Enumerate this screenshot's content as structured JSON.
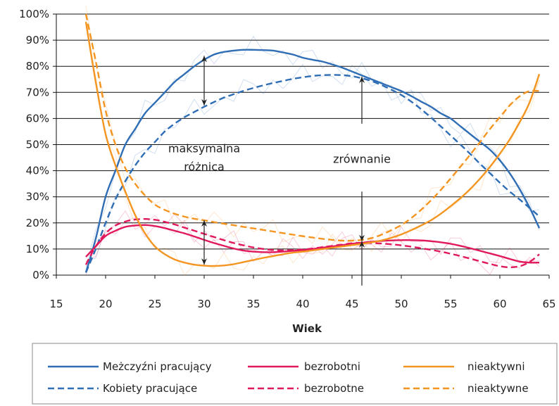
{
  "chart_data": {
    "type": "line",
    "xlabel": "Wiek",
    "ylabel": "",
    "xlim": [
      15,
      65
    ],
    "ylim": [
      0,
      100
    ],
    "x_ticks": [
      15,
      20,
      25,
      30,
      35,
      40,
      45,
      50,
      55,
      60,
      65
    ],
    "y_ticks": [
      0,
      10,
      20,
      30,
      40,
      50,
      60,
      70,
      80,
      90,
      100
    ],
    "x_tick_labels": [
      "15",
      "20",
      "25",
      "30",
      "35",
      "40",
      "45",
      "50",
      "55",
      "60",
      "65"
    ],
    "y_tick_labels": [
      "0%",
      "10%",
      "20%",
      "30%",
      "40%",
      "50%",
      "60%",
      "70%",
      "80%",
      "90%",
      "100%"
    ],
    "grid": "horizontal",
    "legend_placement": "bottom",
    "annotations": [
      {
        "text": "maksymalna",
        "x": 30,
        "y": 47
      },
      {
        "text": "różnica",
        "x": 30,
        "y": 40
      },
      {
        "text": "zrównanie",
        "x": 46,
        "y": 43
      }
    ],
    "arrows": [
      {
        "x": 30,
        "y_from": 65,
        "y_to": 84
      },
      {
        "x": 30,
        "y_from": 4,
        "y_to": 21
      },
      {
        "x": 46,
        "y_from": 58,
        "y_to": 76,
        "pointing": "down-to"
      },
      {
        "x": 46,
        "y_from": 32,
        "y_to": 13,
        "pointing": "down-to"
      },
      {
        "x": 46,
        "y_from": -4,
        "y_to": 13,
        "pointing": "up-to"
      }
    ],
    "series": [
      {
        "name": "Meżczyźni pracujący",
        "color": "#2f6db5",
        "dash": "solid",
        "x": [
          18,
          19,
          20,
          21,
          22,
          23,
          24,
          25,
          26,
          27,
          28,
          29,
          30,
          31,
          32,
          33,
          34,
          35,
          36,
          37,
          38,
          39,
          40,
          41,
          42,
          43,
          44,
          45,
          46,
          47,
          48,
          49,
          50,
          51,
          52,
          53,
          54,
          55,
          56,
          57,
          58,
          59,
          60,
          61,
          62,
          63,
          64
        ],
        "y": [
          1,
          14,
          30,
          40,
          50,
          56,
          62,
          66,
          70,
          74,
          77,
          80,
          82.5,
          84.5,
          85.5,
          86,
          86.3,
          86.3,
          86.2,
          86,
          85.3,
          84.5,
          83.3,
          82.5,
          81.8,
          80.7,
          79.5,
          78,
          76.5,
          75,
          73.5,
          72,
          70.5,
          68.6,
          66.5,
          64.5,
          62,
          60,
          57,
          54,
          51,
          48,
          44,
          39,
          33,
          26,
          18
        ]
      },
      {
        "name": "Kobiety pracujące",
        "color": "#2f6db5",
        "dash": "dashed",
        "x": [
          18,
          19,
          20,
          21,
          22,
          23,
          24,
          25,
          26,
          27,
          28,
          29,
          30,
          31,
          32,
          33,
          34,
          35,
          36,
          37,
          38,
          39,
          40,
          41,
          42,
          43,
          44,
          45,
          46,
          47,
          48,
          49,
          50,
          51,
          52,
          53,
          54,
          55,
          56,
          57,
          58,
          59,
          60,
          61,
          62,
          63,
          64
        ],
        "y": [
          1,
          10,
          20,
          29,
          36,
          42,
          47,
          51,
          55,
          58,
          60.5,
          62.5,
          64.5,
          66.3,
          68,
          69.3,
          70.6,
          71.7,
          72.7,
          73.6,
          74.4,
          75.2,
          75.8,
          76.3,
          76.6,
          76.7,
          76.6,
          76.2,
          75.4,
          74.3,
          72.8,
          71,
          69,
          66.5,
          63.6,
          60.4,
          57,
          53.5,
          50,
          46.4,
          42.6,
          39,
          35.4,
          32,
          29,
          25.8,
          22.5
        ]
      },
      {
        "name": "bezrobotni",
        "color": "#e0195c",
        "dash": "solid",
        "x": [
          18,
          19,
          20,
          21,
          22,
          23,
          24,
          25,
          26,
          27,
          28,
          29,
          30,
          31,
          32,
          33,
          34,
          35,
          36,
          37,
          38,
          39,
          40,
          41,
          42,
          43,
          44,
          45,
          46,
          47,
          48,
          49,
          50,
          51,
          52,
          53,
          54,
          55,
          56,
          57,
          58,
          59,
          60,
          61,
          62,
          63,
          64
        ],
        "y": [
          7,
          11,
          15,
          17,
          18.5,
          19,
          19.2,
          18.8,
          18,
          17,
          16,
          14.8,
          13.5,
          12.3,
          11.2,
          10.2,
          9.4,
          9,
          8.8,
          8.8,
          9,
          9.3,
          9.6,
          10,
          10.5,
          11,
          11.5,
          12,
          12.4,
          12.8,
          13.1,
          13.3,
          13.4,
          13.4,
          13.3,
          13,
          12.6,
          12,
          11.2,
          10.3,
          9.3,
          8.3,
          7.3,
          6.2,
          5.2,
          4.8,
          4.8
        ]
      },
      {
        "name": "bezrobotne",
        "color": "#e0195c",
        "dash": "dashed",
        "x": [
          18,
          19,
          20,
          21,
          22,
          23,
          24,
          25,
          26,
          27,
          28,
          29,
          30,
          31,
          32,
          33,
          34,
          35,
          36,
          37,
          38,
          39,
          40,
          41,
          42,
          43,
          44,
          45,
          46,
          47,
          48,
          49,
          50,
          51,
          52,
          53,
          54,
          55,
          56,
          57,
          58,
          59,
          60,
          61,
          62,
          63,
          64
        ],
        "y": [
          4,
          11,
          16,
          19,
          20.5,
          21.3,
          21.5,
          21.2,
          20.4,
          19.4,
          18.2,
          17,
          15.8,
          14.6,
          13.4,
          12.3,
          11.4,
          10.6,
          10,
          9.6,
          9.5,
          9.6,
          9.8,
          10.2,
          10.7,
          11.2,
          11.7,
          12.2,
          12.4,
          12.3,
          12.1,
          11.8,
          11.4,
          10.9,
          10.3,
          9.7,
          9,
          8.2,
          7.3,
          6.3,
          5.3,
          4.3,
          3.4,
          3,
          3.4,
          5,
          8
        ]
      },
      {
        "name": "nieaktywni",
        "color": "#f39520",
        "dash": "solid",
        "x": [
          18,
          19,
          20,
          21,
          22,
          23,
          24,
          25,
          26,
          27,
          28,
          29,
          30,
          31,
          32,
          33,
          34,
          35,
          36,
          37,
          38,
          39,
          40,
          41,
          42,
          43,
          44,
          45,
          46,
          47,
          48,
          49,
          50,
          51,
          52,
          53,
          54,
          55,
          56,
          57,
          58,
          59,
          60,
          61,
          62,
          63,
          64
        ],
        "y": [
          97,
          74,
          54,
          42,
          32,
          23,
          16,
          11,
          8,
          6,
          4.8,
          4,
          3.6,
          3.5,
          3.7,
          4.2,
          5,
          5.8,
          6.6,
          7.3,
          8,
          8.6,
          9,
          9.5,
          10,
          10.5,
          11,
          11.5,
          12,
          12.6,
          13.3,
          14.3,
          15.6,
          17.2,
          19,
          21,
          23.5,
          26.4,
          29.5,
          33,
          37,
          41.5,
          46.5,
          52,
          58.5,
          66,
          77
        ]
      },
      {
        "name": "nieaktywne",
        "color": "#f39520",
        "dash": "dashed",
        "x": [
          18,
          19,
          20,
          21,
          22,
          23,
          24,
          25,
          26,
          27,
          28,
          29,
          30,
          31,
          32,
          33,
          34,
          35,
          36,
          37,
          38,
          39,
          40,
          41,
          42,
          43,
          44,
          45,
          46,
          47,
          48,
          49,
          50,
          51,
          52,
          53,
          54,
          55,
          56,
          57,
          58,
          59,
          60,
          61,
          62,
          63,
          64
        ],
        "y": [
          100,
          82,
          63,
          50,
          41,
          35,
          30.5,
          27,
          25,
          23.5,
          22.4,
          21.6,
          21,
          20.3,
          19.7,
          19.1,
          18.5,
          17.9,
          17.3,
          16.7,
          16.1,
          15.5,
          14.9,
          14.4,
          13.9,
          13.5,
          13.2,
          13.2,
          13.5,
          14.2,
          15.5,
          17.2,
          19.2,
          21.8,
          25,
          28.6,
          32.6,
          37,
          41.5,
          46.2,
          51,
          56,
          60.5,
          65,
          68.5,
          70.5,
          70.5
        ]
      }
    ]
  }
}
